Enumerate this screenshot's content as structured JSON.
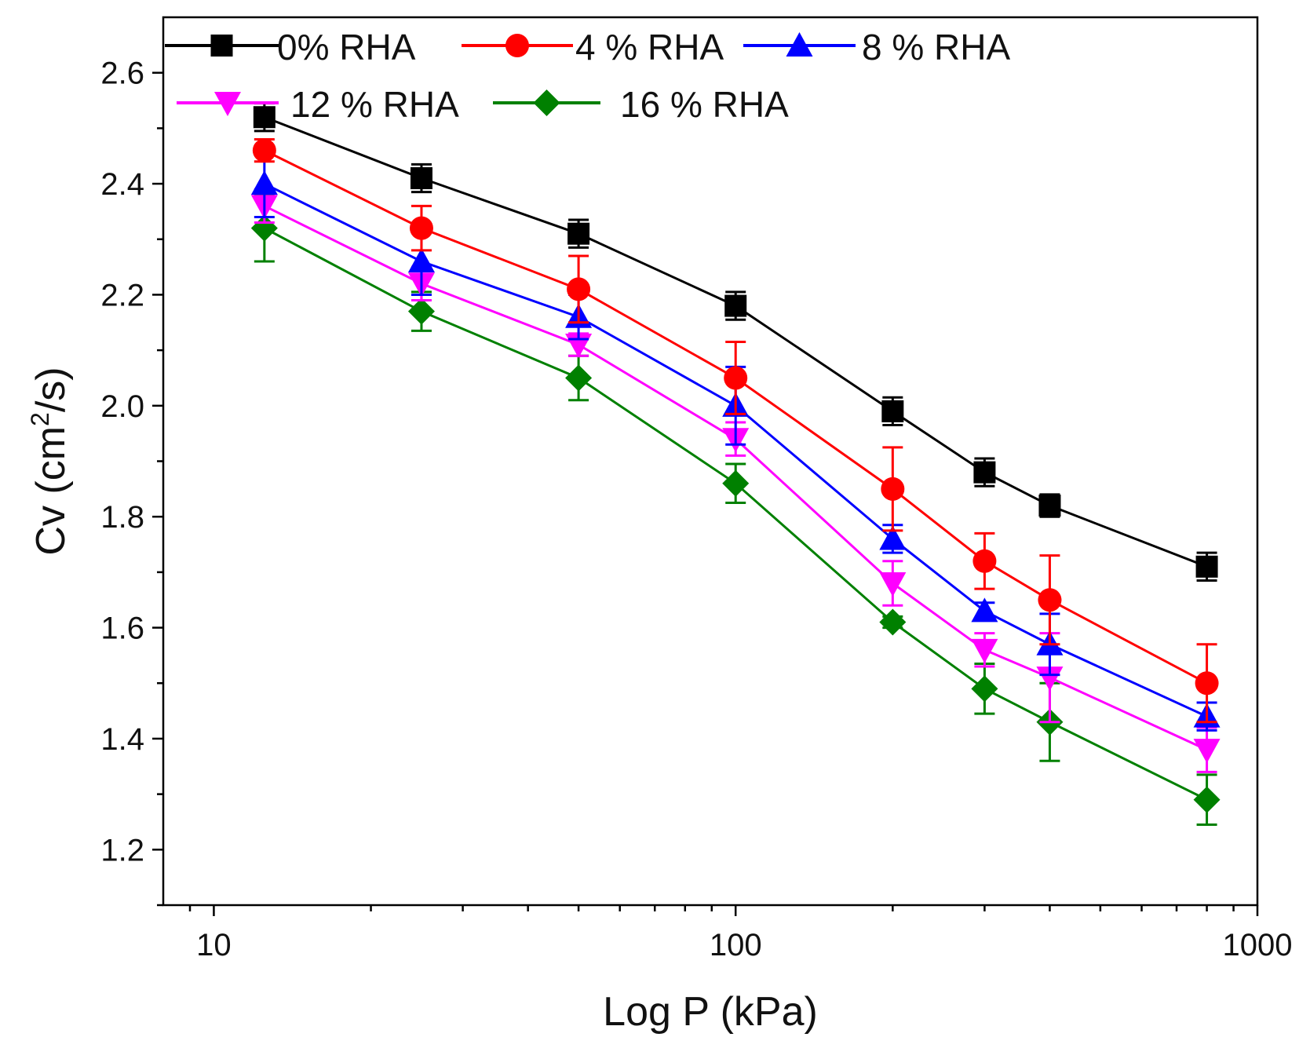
{
  "chart_data": {
    "type": "line",
    "xlabel": "Log P (kPa)",
    "ylabel_main": "Cv (cm",
    "ylabel_sup": "2",
    "ylabel_tail": "/s)",
    "xscale": "log",
    "xlim": [
      8,
      1000
    ],
    "ylim": [
      1.1,
      2.7
    ],
    "xticks_major": [
      10,
      100,
      1000
    ],
    "xtick_labels": [
      "10",
      "100",
      "1000"
    ],
    "yticks_major": [
      1.2,
      1.4,
      1.6,
      1.8,
      2.0,
      2.2,
      2.4,
      2.6
    ],
    "ytick_labels": [
      "1.2",
      "1.4",
      "1.6",
      "1.8",
      "2.0",
      "2.2",
      "2.4",
      "2.6"
    ],
    "legend_placement": "top-left",
    "x": [
      12.5,
      25,
      50,
      100,
      200,
      300,
      400,
      800
    ],
    "series": [
      {
        "name": "0% RHA",
        "color": "#000000",
        "marker": "square",
        "values": [
          2.52,
          2.41,
          2.31,
          2.18,
          1.99,
          1.88,
          1.82,
          1.71
        ],
        "errors": [
          0.025,
          0.025,
          0.025,
          0.025,
          0.025,
          0.025,
          0.02,
          0.025
        ]
      },
      {
        "name": "4 % RHA",
        "color": "#ff0000",
        "marker": "circle",
        "values": [
          2.46,
          2.32,
          2.21,
          2.05,
          1.85,
          1.72,
          1.65,
          1.5
        ],
        "errors": [
          0.02,
          0.04,
          0.06,
          0.065,
          0.075,
          0.05,
          0.08,
          0.07
        ]
      },
      {
        "name": "8 % RHA",
        "color": "#0000ff",
        "marker": "triangle-up",
        "values": [
          2.4,
          2.26,
          2.16,
          2.0,
          1.76,
          1.63,
          1.57,
          1.44
        ],
        "errors": [
          0.06,
          0.06,
          0.04,
          0.07,
          0.025,
          0.015,
          0.055,
          0.025
        ]
      },
      {
        "name": "12 % RHA",
        "color": "#ff00ff",
        "marker": "triangle-down",
        "values": [
          2.36,
          2.22,
          2.11,
          1.94,
          1.68,
          1.56,
          1.51,
          1.38
        ],
        "errors": [
          0.03,
          0.03,
          0.02,
          0.03,
          0.04,
          0.03,
          0.08,
          0.04
        ]
      },
      {
        "name": "16 % RHA",
        "color": "#008000",
        "marker": "diamond",
        "values": [
          2.32,
          2.17,
          2.05,
          1.86,
          1.61,
          1.49,
          1.43,
          1.29
        ],
        "errors": [
          0.06,
          0.035,
          0.04,
          0.035,
          0.01,
          0.045,
          0.07,
          0.045
        ]
      }
    ]
  }
}
